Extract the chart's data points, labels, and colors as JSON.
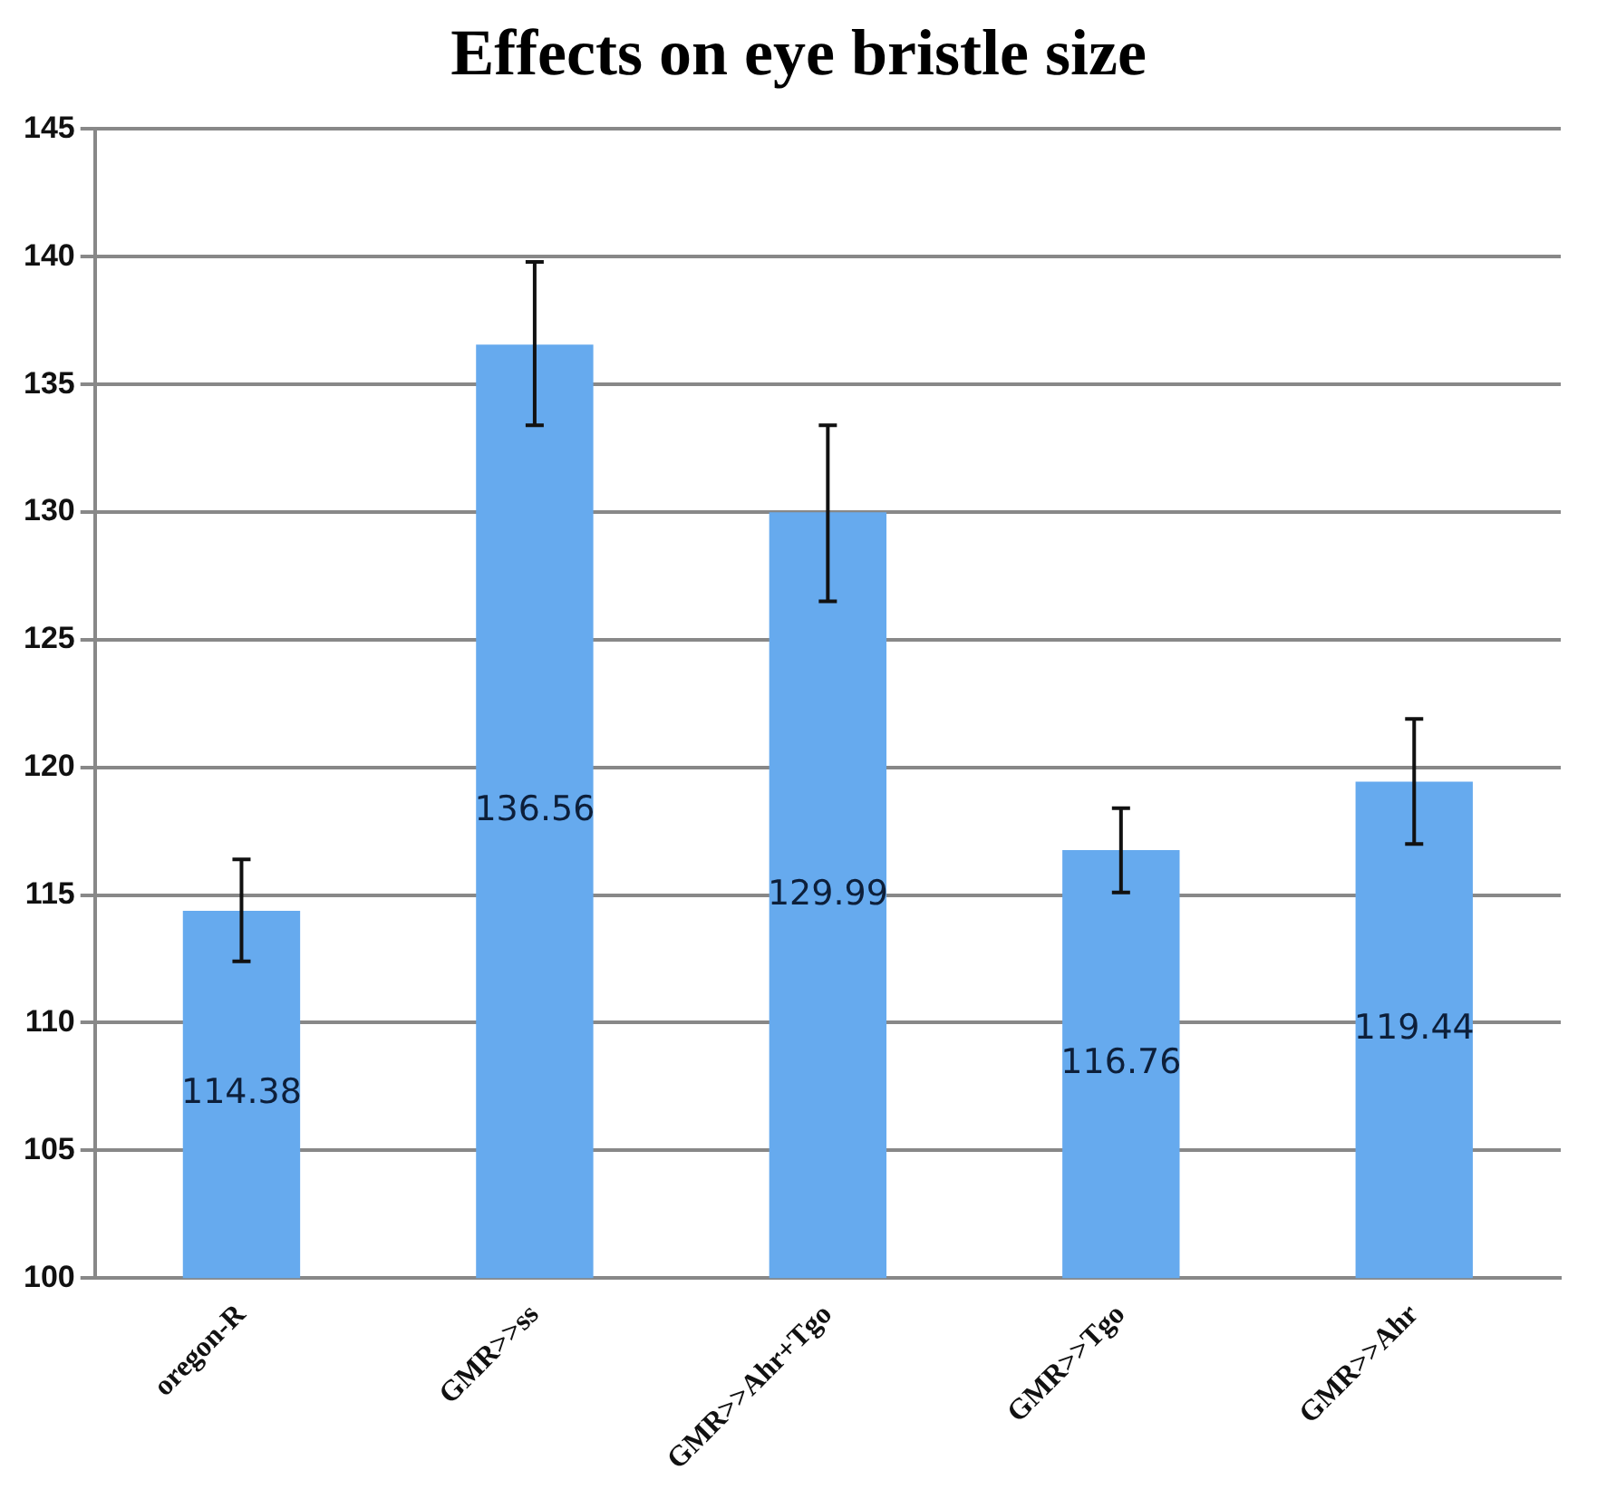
{
  "chart_data": {
    "type": "bar",
    "title": "Effects on eye bristle size",
    "categories": [
      "oregon-R",
      "GMR>>ss",
      "GMR>>Ahr+Tgo",
      "GMR>>Tgo",
      "GMR>>Ahr"
    ],
    "values": [
      114.38,
      136.56,
      129.99,
      116.76,
      119.44
    ],
    "errors": [
      [
        112.4,
        116.4
      ],
      [
        133.4,
        139.8
      ],
      [
        126.5,
        133.4
      ],
      [
        115.1,
        118.4
      ],
      [
        117.0,
        121.9
      ]
    ],
    "color": "#66aaee",
    "ylim": [
      100,
      145
    ],
    "yticks": [
      100,
      105,
      110,
      115,
      120,
      125,
      130,
      135,
      140,
      145
    ],
    "grid": "y",
    "data_labels": true,
    "legend": false
  }
}
